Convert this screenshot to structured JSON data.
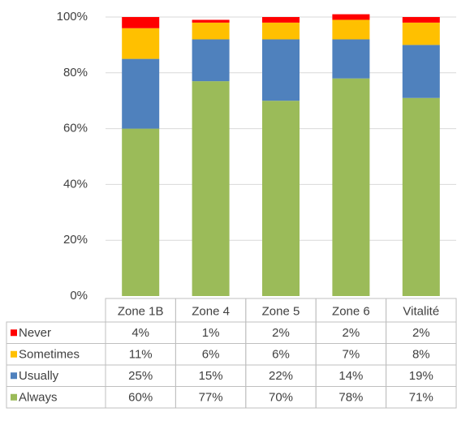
{
  "chart_data": {
    "type": "stacked_bar",
    "categories": [
      "Zone 1B",
      "Zone 4",
      "Zone 5",
      "Zone 6",
      "Vitalité"
    ],
    "series": [
      {
        "name": "Never",
        "color": "#ff0000",
        "values": [
          4,
          1,
          2,
          2,
          2
        ],
        "value_labels": [
          "4%",
          "1%",
          "2%",
          "2%",
          "2%"
        ]
      },
      {
        "name": "Sometimes",
        "color": "#ffc000",
        "values": [
          11,
          6,
          6,
          7,
          8
        ],
        "value_labels": [
          "11%",
          "6%",
          "6%",
          "7%",
          "8%"
        ]
      },
      {
        "name": "Usually",
        "color": "#4f81bd",
        "values": [
          25,
          15,
          22,
          14,
          19
        ],
        "value_labels": [
          "25%",
          "15%",
          "22%",
          "14%",
          "19%"
        ]
      },
      {
        "name": "Always",
        "color": "#9bbb59",
        "values": [
          60,
          77,
          70,
          78,
          71
        ],
        "value_labels": [
          "60%",
          "77%",
          "70%",
          "78%",
          "71%"
        ]
      }
    ],
    "ylim": [
      0,
      100
    ],
    "yticks": [
      {
        "value": 0,
        "label": "0%"
      },
      {
        "value": 20,
        "label": "20%"
      },
      {
        "value": 40,
        "label": "40%"
      },
      {
        "value": 60,
        "label": "60%"
      },
      {
        "value": 80,
        "label": "80%"
      },
      {
        "value": 100,
        "label": "100%"
      }
    ],
    "grid": true
  }
}
